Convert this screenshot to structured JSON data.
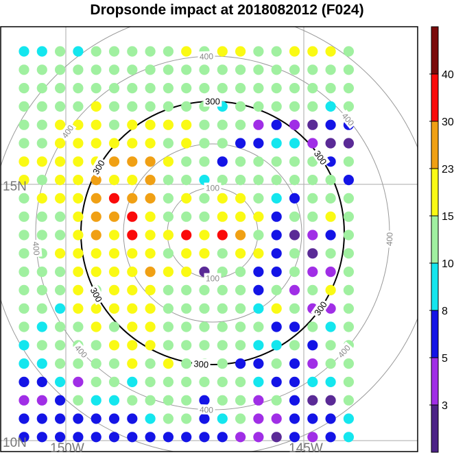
{
  "title": "Dropsonde impact at 2018082012 (F024)",
  "map": {
    "lat_labels": [
      "15N",
      "10N"
    ],
    "lon_labels": [
      "150W",
      "145W"
    ],
    "range_rings": [
      {
        "label": "100",
        "emphasized": false
      },
      {
        "label": "200",
        "emphasized": false,
        "unlabeled": true
      },
      {
        "label": "300",
        "emphasized": true
      },
      {
        "label": "400",
        "emphasized": false
      },
      {
        "label": "500",
        "emphasized": false,
        "unlabeled": true
      }
    ],
    "grid_rows": [
      [
        "c",
        "c",
        "g",
        "c",
        "g",
        "g",
        "g",
        "g",
        "g",
        "y",
        "g",
        "y",
        "y",
        "g",
        "g",
        "y",
        "y",
        "y",
        "g"
      ],
      [
        "g",
        "g",
        "g",
        "g",
        "g",
        "g",
        "g",
        "g",
        "g",
        "g",
        "g",
        "g",
        "g",
        "g",
        "g",
        "g",
        "g",
        "g",
        "g"
      ],
      [
        "g",
        "g",
        "g",
        "g",
        "g",
        "g",
        "g",
        "g",
        "g",
        "g",
        "g",
        "g",
        "g",
        "g",
        "g",
        "g",
        "g",
        "g",
        "g"
      ],
      [
        "g",
        "g",
        "g",
        "g",
        "y",
        "g",
        "g",
        "g",
        "g",
        "g",
        "g",
        "c",
        "g",
        "g",
        "g",
        "g",
        "g",
        "c",
        "g"
      ],
      [
        "g",
        "g",
        "y",
        "y",
        "y",
        "g",
        "y",
        "y",
        "y",
        "y",
        "g",
        "g",
        "g",
        "p",
        "b",
        "p",
        "d",
        "b",
        "b"
      ],
      [
        "g",
        "g",
        "y",
        "y",
        "y",
        "y",
        "y",
        "y",
        "g",
        "y",
        "g",
        "g",
        "b",
        "b",
        "c",
        "c",
        "p",
        "d",
        "d"
      ],
      [
        "y",
        "y",
        "y",
        "y",
        "y",
        "o",
        "o",
        "o",
        "y",
        "g",
        "g",
        "b",
        "g",
        "g",
        "g",
        "g",
        "g",
        "b",
        "g"
      ],
      [
        "y",
        "g",
        "y",
        "y",
        "o",
        "y",
        "y",
        "o",
        "g",
        "g",
        "c",
        "g",
        "g",
        "g",
        "g",
        "g",
        "g",
        "g",
        "b"
      ],
      [
        "g",
        "y",
        "y",
        "y",
        "o",
        "r",
        "o",
        "o",
        "g",
        "y",
        "g",
        "y",
        "y",
        "g",
        "c",
        "b",
        "g",
        "g",
        "g"
      ],
      [
        "g",
        "g",
        "g",
        "y",
        "o",
        "o",
        "r",
        "y",
        "g",
        "g",
        "g",
        "y",
        "y",
        "y",
        "b",
        "g",
        "g",
        "y",
        "g"
      ],
      [
        "g",
        "g",
        "g",
        "y",
        "o",
        "y",
        "r",
        "y",
        "y",
        "r",
        "y",
        "r",
        "o",
        "g",
        "b",
        "d",
        "p",
        "b",
        "g"
      ],
      [
        "g",
        "g",
        "y",
        "y",
        "y",
        "y",
        "y",
        "y",
        "g",
        "y",
        "y",
        "g",
        "y",
        "y",
        "b",
        "g",
        "d",
        "g",
        "g"
      ],
      [
        "g",
        "g",
        "g",
        "y",
        "y",
        "y",
        "y",
        "o",
        "y",
        "y",
        "d",
        "g",
        "g",
        "b",
        "b",
        "g",
        "p",
        "p",
        "g"
      ],
      [
        "g",
        "g",
        "g",
        "y",
        "g",
        "y",
        "y",
        "y",
        "g",
        "g",
        "g",
        "g",
        "g",
        "b",
        "g",
        "p",
        "g",
        "y",
        "g"
      ],
      [
        "g",
        "g",
        "c",
        "y",
        "y",
        "y",
        "y",
        "y",
        "g",
        "g",
        "g",
        "g",
        "g",
        "c",
        "y",
        "g",
        "p",
        "p",
        "g"
      ],
      [
        "g",
        "c",
        "g",
        "g",
        "y",
        "g",
        "y",
        "y",
        "g",
        "g",
        "g",
        "g",
        "g",
        "g",
        "b",
        "b",
        "g",
        "c",
        "g"
      ],
      [
        "c",
        "g",
        "g",
        "g",
        "g",
        "y",
        "y",
        "y",
        "g",
        "g",
        "g",
        "g",
        "g",
        "c",
        "c",
        "g",
        "b",
        "g",
        "g"
      ],
      [
        "c",
        "c",
        "g",
        "g",
        "g",
        "g",
        "y",
        "g",
        "y",
        "g",
        "g",
        "g",
        "b",
        "b",
        "g",
        "b",
        "p",
        "g",
        "g"
      ],
      [
        "b",
        "b",
        "c",
        "p",
        "g",
        "g",
        "c",
        "g",
        "g",
        "g",
        "g",
        "g",
        "g",
        "c",
        "b",
        "b",
        "c",
        "c",
        "g"
      ],
      [
        "p",
        "p",
        "b",
        "g",
        "c",
        "c",
        "g",
        "g",
        "g",
        "g",
        "b",
        "g",
        "g",
        "p",
        "g",
        "b",
        "d",
        "d",
        "g"
      ],
      [
        "b",
        "b",
        "b",
        "b",
        "b",
        "b",
        "b",
        "c",
        "g",
        "g",
        "b",
        "c",
        "g",
        "p",
        "p",
        "b",
        "b",
        "b",
        "c"
      ],
      [
        "b",
        "b",
        "b",
        "b",
        "b",
        "b",
        "b",
        "b",
        "b",
        "b",
        "b",
        "b",
        "p",
        "p",
        "d",
        "b",
        "p",
        "b",
        "c"
      ]
    ],
    "legend_colors": {
      "d": "#5a2a96",
      "p": "#a02ee6",
      "b": "#1414e6",
      "c": "#14e6ee",
      "g": "#a0f0a0",
      "y": "#fafa14",
      "o": "#f0a014",
      "r": "#fa0a0a"
    }
  },
  "colorbar": {
    "labels": [
      "3",
      "5",
      "8",
      "10",
      "15",
      "23",
      "30",
      "40"
    ],
    "colors": [
      "#4c2386",
      "#a02ee6",
      "#1414e6",
      "#14e6ee",
      "#a0f0a0",
      "#fafa14",
      "#f0a014",
      "#fa0a0a",
      "#7a0a0a"
    ]
  }
}
